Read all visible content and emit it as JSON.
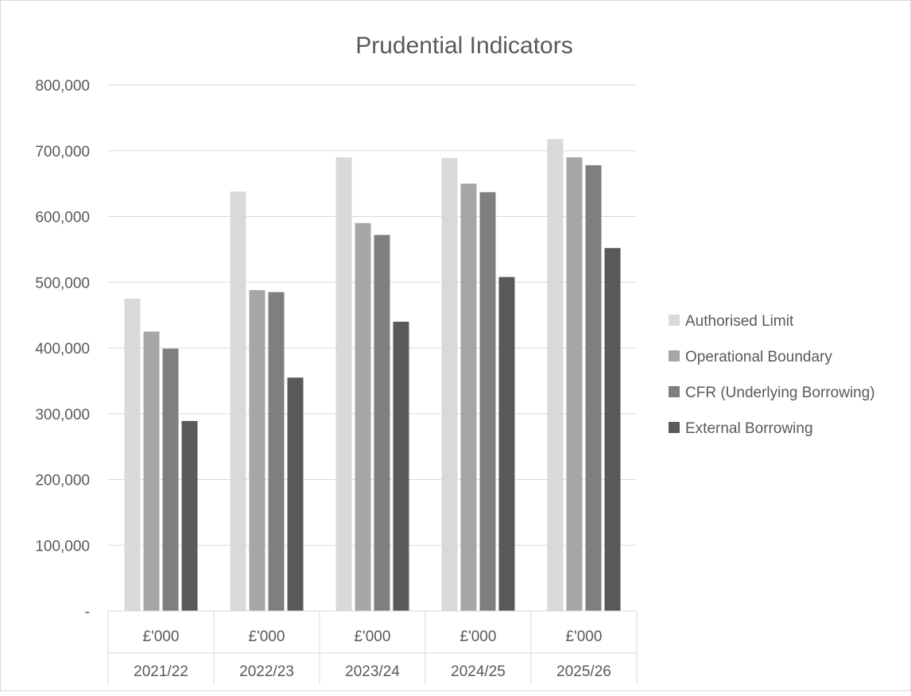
{
  "chart_data": {
    "type": "bar",
    "title": "Prudential Indicators",
    "xlabel": "",
    "ylabel": "",
    "ylim": [
      0,
      800000
    ],
    "yticks": [
      0,
      100000,
      200000,
      300000,
      400000,
      500000,
      600000,
      700000,
      800000
    ],
    "ytick_labels": [
      "-",
      "100,000",
      "200,000",
      "300,000",
      "400,000",
      "500,000",
      "600,000",
      "700,000",
      "800,000"
    ],
    "grid": true,
    "legend": "right",
    "categories": [
      "2021/22",
      "2022/23",
      "2023/24",
      "2024/25",
      "2025/26"
    ],
    "category_units": [
      "£'000",
      "£'000",
      "£'000",
      "£'000",
      "£'000"
    ],
    "series": [
      {
        "name": "Authorised Limit",
        "color": "#d9d9d9",
        "values": [
          475000,
          638000,
          690000,
          689000,
          718000
        ]
      },
      {
        "name": "Operational Boundary",
        "color": "#a6a6a6",
        "values": [
          425000,
          488000,
          590000,
          650000,
          690000
        ]
      },
      {
        "name": "CFR (Underlying Borrowing)",
        "color": "#7f7f7f",
        "values": [
          399000,
          485000,
          572000,
          637000,
          678000
        ]
      },
      {
        "name": "External Borrowing",
        "color": "#595959",
        "values": [
          289000,
          355000,
          440000,
          508000,
          552000
        ]
      }
    ]
  }
}
